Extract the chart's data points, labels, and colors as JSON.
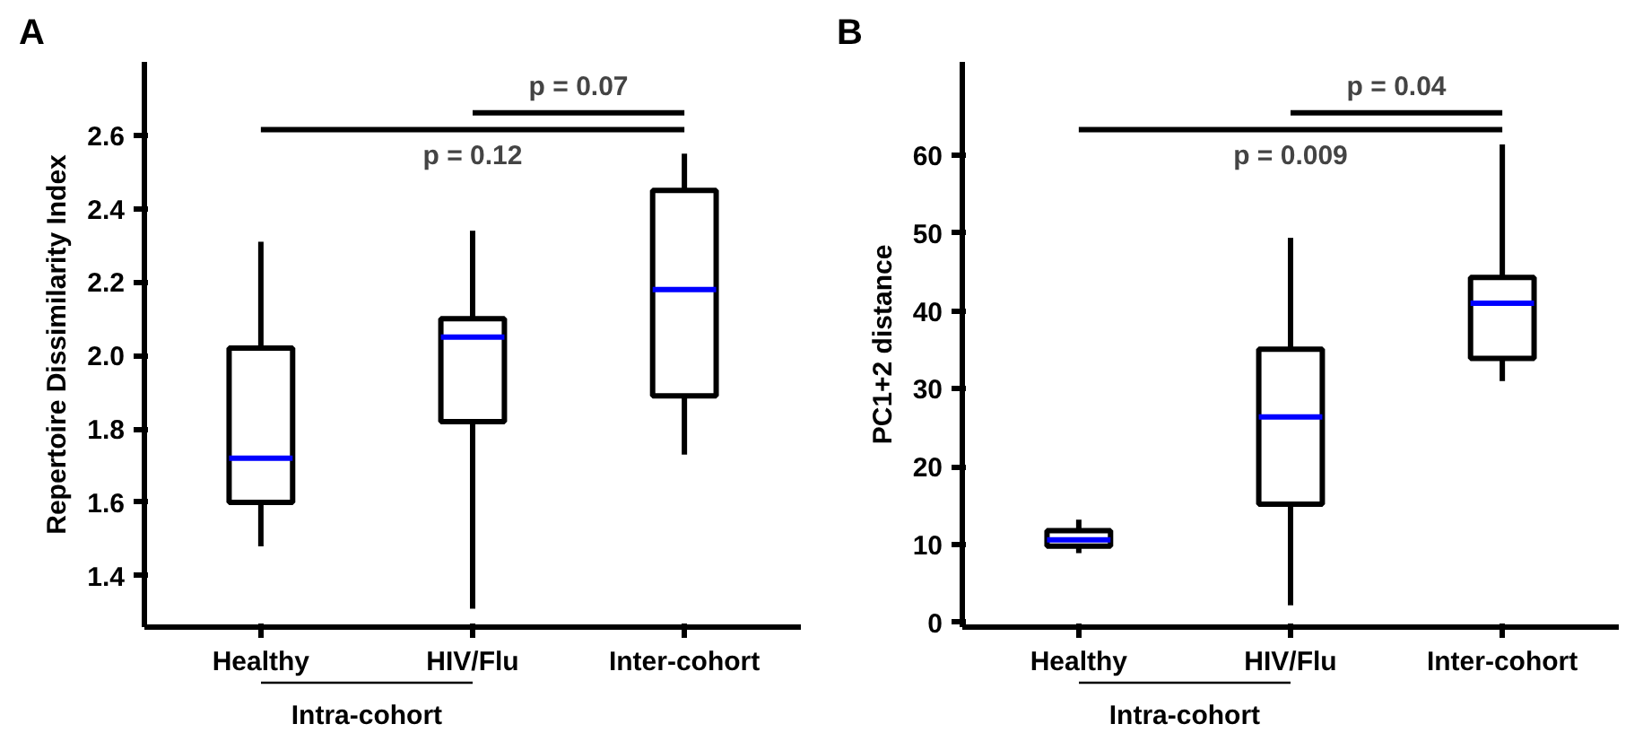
{
  "chart_data": [
    {
      "type": "box",
      "title": "A",
      "ylabel": "Repertoire Dissimilarity Index",
      "categories": [
        "Healthy",
        "HIV/Flu",
        "Inter-cohort"
      ],
      "ylim": [
        1.26,
        2.8
      ],
      "yticks": [
        1.4,
        1.6,
        1.8,
        {
          "value": 2,
          "label": "2.0"
        },
        2.2,
        2.4,
        2.6
      ],
      "grid": false,
      "series": [
        {
          "color": "#000000",
          "boxes": [
            {
              "low": 1.48,
              "q1": 1.6,
              "median": 1.72,
              "q3": 2.02,
              "high": 2.31
            },
            {
              "low": 1.31,
              "q1": 1.82,
              "median": 2.05,
              "q3": 2.1,
              "high": 2.34
            },
            {
              "low": 1.73,
              "q1": 1.89,
              "median": 2.18,
              "q3": 2.45,
              "high": 2.55
            }
          ]
        }
      ],
      "annotations": [
        "p = 0.07",
        "p = 0.12",
        "Intra-cohort"
      ]
    },
    {
      "type": "box",
      "title": "B",
      "ylabel": "PC1+2 distance",
      "categories": [
        "Healthy",
        "HIV/Flu",
        "Inter-cohort"
      ],
      "ylim": [
        -0.6,
        72
      ],
      "yticks": [
        0,
        10,
        20,
        30,
        40,
        50,
        60
      ],
      "grid": false,
      "series": [
        {
          "color": "#000000",
          "boxes": [
            {
              "low": 8.9,
              "q1": 9.8,
              "median": 10.6,
              "q3": 11.8,
              "high": 13.2
            },
            {
              "low": 2.2,
              "q1": 15.2,
              "median": 26.4,
              "q3": 35.1,
              "high": 49.4
            },
            {
              "low": 31.0,
              "q1": 33.9,
              "median": 41.0,
              "q3": 44.3,
              "high": 61.4
            }
          ]
        }
      ],
      "annotations": [
        "p = 0.04",
        "p = 0.009",
        "Intra-cohort"
      ]
    }
  ]
}
